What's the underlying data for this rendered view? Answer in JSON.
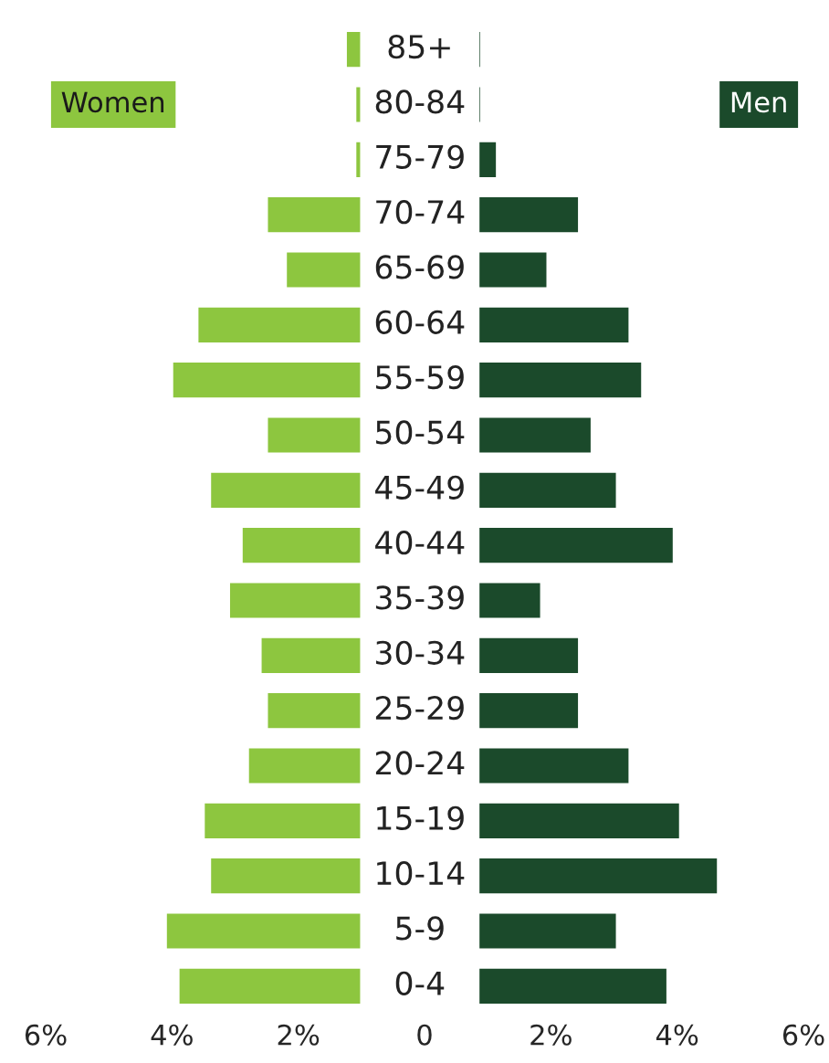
{
  "chart_data": {
    "type": "bar",
    "orientation": "horizontal",
    "categories": [
      "85+",
      "80-84",
      "75-79",
      "70-74",
      "65-69",
      "60-64",
      "55-59",
      "50-54",
      "45-49",
      "40-44",
      "35-39",
      "30-34",
      "25-29",
      "20-24",
      "15-19",
      "10-14",
      "5-9",
      "0-4"
    ],
    "series": [
      {
        "name": "Women",
        "color": "#8dc63f",
        "base": [
          -1.0,
          -1.0,
          -1.0,
          -1.0,
          -1.0,
          -1.0,
          -1.0,
          -1.0,
          -1.0,
          -1.0,
          -1.0,
          -1.0,
          -1.0,
          -1.0,
          -1.0,
          -1.0,
          -1.0,
          -1.0
        ],
        "values": [
          -0.25,
          -0.1,
          -0.1,
          -1.5,
          -1.2,
          -2.6,
          -3.0,
          -1.5,
          -2.4,
          -1.9,
          -2.1,
          -1.6,
          -1.5,
          -1.8,
          -2.5,
          -2.4,
          -3.1,
          -2.9
        ]
      },
      {
        "name": "Men",
        "color": "#1b4a2b",
        "base": [
          0.85,
          0.85,
          0.85,
          0.85,
          0.85,
          0.85,
          0.85,
          0.85,
          0.85,
          0.85,
          0.85,
          0.85,
          0.85,
          0.85,
          0.85,
          0.85,
          0.85,
          0.85
        ],
        "values": [
          0.05,
          0.05,
          0.3,
          1.6,
          1.1,
          2.4,
          2.6,
          1.8,
          2.2,
          3.1,
          1.0,
          1.6,
          1.6,
          2.4,
          3.2,
          3.8,
          2.2,
          3.0
        ]
      }
    ],
    "xlim": [
      -6,
      6
    ],
    "xticks": [
      {
        "value": -6,
        "label": "6%"
      },
      {
        "value": -4,
        "label": "4%"
      },
      {
        "value": -2,
        "label": "2%"
      },
      0,
      {
        "value": 2,
        "label": "2%"
      },
      {
        "value": 4,
        "label": "4%"
      },
      {
        "value": 6,
        "label": "6%"
      }
    ],
    "legend": "top",
    "grid": false
  }
}
